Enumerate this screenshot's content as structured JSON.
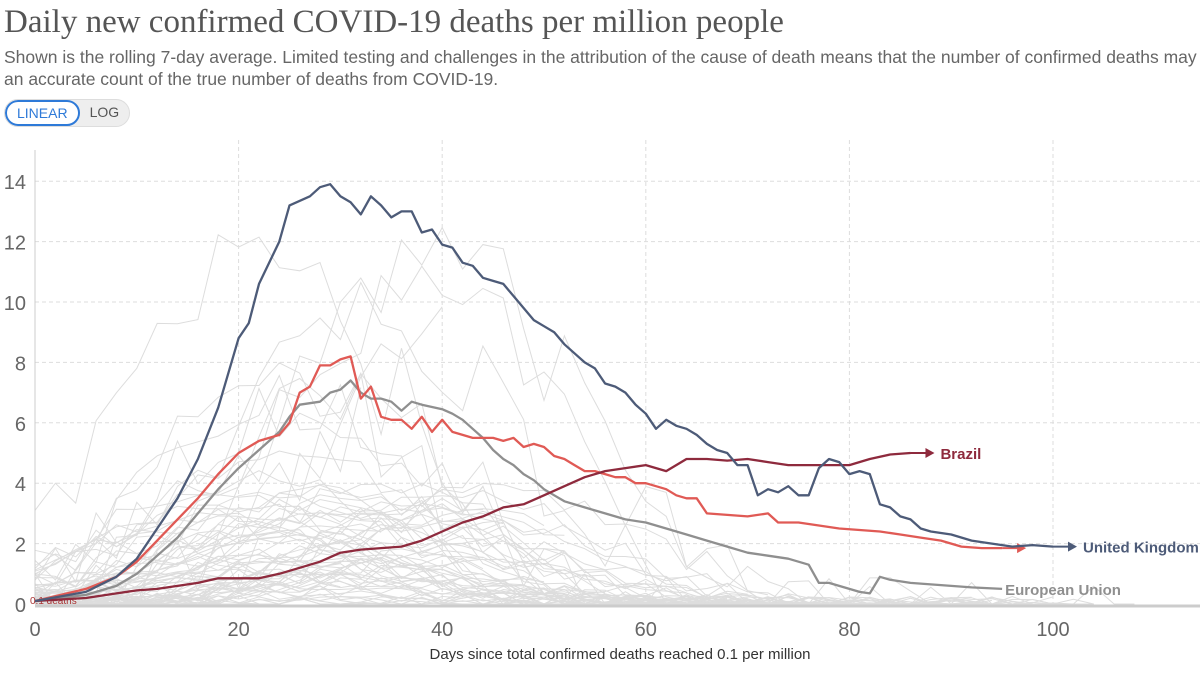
{
  "header": {
    "title": "Daily new confirmed COVID-19 deaths per million people",
    "subtitle": "Shown is the rolling 7-day average. Limited testing and challenges in the attribution of the cause of death means that the number of confirmed deaths may not be an accurate count of the true number of deaths from COVID-19."
  },
  "scale_toggle": {
    "linear": "LINEAR",
    "log": "LOG",
    "selected": "LINEAR"
  },
  "chart_data": {
    "type": "line",
    "title": "Daily new confirmed COVID-19 deaths per million people",
    "xlabel": "Days since total confirmed deaths reached 0.1 per million",
    "ylabel": "",
    "xlim": [
      0,
      115
    ],
    "ylim": [
      0,
      15.3
    ],
    "x_ticks": [
      "0",
      "20",
      "40",
      "60",
      "80",
      "100"
    ],
    "y_ticks": [
      "0",
      "2",
      "4",
      "6",
      "8",
      "10",
      "12",
      "14"
    ],
    "grid": true,
    "annotation": "0.1 deaths",
    "series": [
      {
        "name": "United Kingdom",
        "color": "#4d5b78",
        "points": [
          [
            0,
            0.1
          ],
          [
            5,
            0.4
          ],
          [
            8,
            0.9
          ],
          [
            10,
            1.5
          ],
          [
            12,
            2.5
          ],
          [
            14,
            3.5
          ],
          [
            16,
            4.8
          ],
          [
            18,
            6.5
          ],
          [
            20,
            8.8
          ],
          [
            21,
            9.3
          ],
          [
            22,
            10.6
          ],
          [
            24,
            12.0
          ],
          [
            25,
            13.2
          ],
          [
            27,
            13.5
          ],
          [
            28,
            13.8
          ],
          [
            29,
            13.9
          ],
          [
            30,
            13.5
          ],
          [
            31,
            13.3
          ],
          [
            32,
            12.9
          ],
          [
            33,
            13.5
          ],
          [
            34,
            13.2
          ],
          [
            35,
            12.8
          ],
          [
            36,
            13.0
          ],
          [
            37,
            13.0
          ],
          [
            38,
            12.3
          ],
          [
            39,
            12.4
          ],
          [
            40,
            11.9
          ],
          [
            41,
            11.8
          ],
          [
            42,
            11.3
          ],
          [
            43,
            11.2
          ],
          [
            44,
            10.8
          ],
          [
            45,
            10.7
          ],
          [
            46,
            10.6
          ],
          [
            47,
            10.2
          ],
          [
            48,
            9.8
          ],
          [
            49,
            9.4
          ],
          [
            50,
            9.2
          ],
          [
            51,
            9.0
          ],
          [
            52,
            8.6
          ],
          [
            53,
            8.3
          ],
          [
            54,
            8.0
          ],
          [
            55,
            7.8
          ],
          [
            56,
            7.3
          ],
          [
            57,
            7.2
          ],
          [
            58,
            7.0
          ],
          [
            59,
            6.6
          ],
          [
            60,
            6.3
          ],
          [
            61,
            5.8
          ],
          [
            62,
            6.1
          ],
          [
            63,
            5.9
          ],
          [
            64,
            5.8
          ],
          [
            65,
            5.6
          ],
          [
            66,
            5.3
          ],
          [
            67,
            5.1
          ],
          [
            68,
            5.0
          ],
          [
            69,
            4.6
          ],
          [
            70,
            4.6
          ],
          [
            71,
            3.6
          ],
          [
            72,
            3.8
          ],
          [
            73,
            3.7
          ],
          [
            74,
            3.9
          ],
          [
            75,
            3.6
          ],
          [
            76,
            3.6
          ],
          [
            77,
            4.5
          ],
          [
            78,
            4.8
          ],
          [
            79,
            4.7
          ],
          [
            80,
            4.3
          ],
          [
            81,
            4.4
          ],
          [
            82,
            4.3
          ],
          [
            83,
            3.3
          ],
          [
            84,
            3.2
          ],
          [
            85,
            2.9
          ],
          [
            86,
            2.8
          ],
          [
            87,
            2.5
          ],
          [
            88,
            2.4
          ],
          [
            90,
            2.3
          ],
          [
            92,
            2.1
          ],
          [
            94,
            2.0
          ],
          [
            96,
            1.9
          ],
          [
            98,
            1.95
          ],
          [
            100,
            1.9
          ]
        ]
      },
      {
        "name": "Brazil",
        "color": "#8e2a3d",
        "points": [
          [
            0,
            0.1
          ],
          [
            5,
            0.2
          ],
          [
            8,
            0.35
          ],
          [
            10,
            0.45
          ],
          [
            12,
            0.5
          ],
          [
            14,
            0.6
          ],
          [
            16,
            0.7
          ],
          [
            18,
            0.85
          ],
          [
            20,
            0.85
          ],
          [
            22,
            0.85
          ],
          [
            24,
            1.0
          ],
          [
            26,
            1.2
          ],
          [
            28,
            1.4
          ],
          [
            30,
            1.7
          ],
          [
            32,
            1.8
          ],
          [
            34,
            1.85
          ],
          [
            36,
            1.9
          ],
          [
            38,
            2.1
          ],
          [
            40,
            2.4
          ],
          [
            42,
            2.7
          ],
          [
            44,
            2.9
          ],
          [
            46,
            3.2
          ],
          [
            48,
            3.3
          ],
          [
            50,
            3.6
          ],
          [
            52,
            3.9
          ],
          [
            54,
            4.2
          ],
          [
            56,
            4.4
          ],
          [
            58,
            4.5
          ],
          [
            60,
            4.6
          ],
          [
            62,
            4.4
          ],
          [
            64,
            4.8
          ],
          [
            66,
            4.8
          ],
          [
            68,
            4.75
          ],
          [
            70,
            4.8
          ],
          [
            72,
            4.7
          ],
          [
            74,
            4.6
          ],
          [
            76,
            4.6
          ],
          [
            78,
            4.6
          ],
          [
            80,
            4.6
          ],
          [
            82,
            4.8
          ],
          [
            84,
            4.95
          ],
          [
            86,
            5.0
          ]
        ]
      },
      {
        "color": "#e05a55",
        "points": [
          [
            0,
            0.1
          ],
          [
            5,
            0.5
          ],
          [
            8,
            0.9
          ],
          [
            10,
            1.4
          ],
          [
            12,
            2.1
          ],
          [
            14,
            2.8
          ],
          [
            16,
            3.5
          ],
          [
            18,
            4.3
          ],
          [
            20,
            5.0
          ],
          [
            22,
            5.4
          ],
          [
            24,
            5.6
          ],
          [
            25,
            6.0
          ],
          [
            26,
            7.0
          ],
          [
            27,
            7.2
          ],
          [
            28,
            7.9
          ],
          [
            29,
            7.9
          ],
          [
            30,
            8.1
          ],
          [
            31,
            8.2
          ],
          [
            32,
            6.8
          ],
          [
            33,
            7.2
          ],
          [
            34,
            6.2
          ],
          [
            35,
            6.1
          ],
          [
            36,
            6.1
          ],
          [
            37,
            5.8
          ],
          [
            38,
            6.2
          ],
          [
            39,
            5.7
          ],
          [
            40,
            6.1
          ],
          [
            41,
            5.7
          ],
          [
            42,
            5.6
          ],
          [
            43,
            5.5
          ],
          [
            45,
            5.5
          ],
          [
            46,
            5.4
          ],
          [
            47,
            5.5
          ],
          [
            48,
            5.2
          ],
          [
            49,
            5.3
          ],
          [
            50,
            5.2
          ],
          [
            51,
            4.9
          ],
          [
            52,
            4.8
          ],
          [
            53,
            4.6
          ],
          [
            54,
            4.4
          ],
          [
            55,
            4.4
          ],
          [
            56,
            4.3
          ],
          [
            57,
            4.2
          ],
          [
            58,
            4.2
          ],
          [
            59,
            4.0
          ],
          [
            60,
            4.0
          ],
          [
            61,
            3.9
          ],
          [
            62,
            3.8
          ],
          [
            63,
            3.6
          ],
          [
            64,
            3.5
          ],
          [
            65,
            3.5
          ],
          [
            66,
            3.0
          ],
          [
            68,
            2.95
          ],
          [
            70,
            2.9
          ],
          [
            72,
            3.0
          ],
          [
            73,
            2.7
          ],
          [
            75,
            2.7
          ],
          [
            77,
            2.6
          ],
          [
            79,
            2.5
          ],
          [
            81,
            2.45
          ],
          [
            83,
            2.4
          ],
          [
            85,
            2.3
          ],
          [
            87,
            2.2
          ],
          [
            89,
            2.1
          ],
          [
            91,
            1.9
          ],
          [
            93,
            1.85
          ],
          [
            95,
            1.85
          ]
        ]
      },
      {
        "name": "European Union",
        "color": "#8f8f8f",
        "points": [
          [
            0,
            0.1
          ],
          [
            5,
            0.3
          ],
          [
            8,
            0.6
          ],
          [
            10,
            1.0
          ],
          [
            12,
            1.6
          ],
          [
            14,
            2.2
          ],
          [
            16,
            3.0
          ],
          [
            18,
            3.8
          ],
          [
            20,
            4.5
          ],
          [
            22,
            5.1
          ],
          [
            24,
            5.7
          ],
          [
            25,
            6.2
          ],
          [
            26,
            6.6
          ],
          [
            28,
            6.7
          ],
          [
            29,
            7.0
          ],
          [
            30,
            7.1
          ],
          [
            31,
            7.4
          ],
          [
            32,
            7.0
          ],
          [
            33,
            6.8
          ],
          [
            34,
            6.8
          ],
          [
            35,
            6.7
          ],
          [
            36,
            6.4
          ],
          [
            37,
            6.7
          ],
          [
            38,
            6.6
          ],
          [
            40,
            6.45
          ],
          [
            41,
            6.3
          ],
          [
            42,
            6.1
          ],
          [
            43,
            5.8
          ],
          [
            44,
            5.5
          ],
          [
            45,
            5.1
          ],
          [
            46,
            4.8
          ],
          [
            47,
            4.6
          ],
          [
            48,
            4.3
          ],
          [
            49,
            4.1
          ],
          [
            50,
            3.8
          ],
          [
            51,
            3.6
          ],
          [
            52,
            3.4
          ],
          [
            54,
            3.2
          ],
          [
            56,
            3.0
          ],
          [
            58,
            2.8
          ],
          [
            60,
            2.7
          ],
          [
            62,
            2.5
          ],
          [
            64,
            2.3
          ],
          [
            66,
            2.1
          ],
          [
            68,
            1.9
          ],
          [
            70,
            1.7
          ],
          [
            72,
            1.6
          ],
          [
            74,
            1.5
          ],
          [
            75,
            1.4
          ],
          [
            76,
            1.3
          ],
          [
            77,
            0.7
          ],
          [
            78,
            0.7
          ],
          [
            79,
            0.6
          ],
          [
            80,
            0.5
          ],
          [
            81,
            0.4
          ],
          [
            82,
            0.35
          ],
          [
            83,
            0.9
          ],
          [
            84,
            0.8
          ],
          [
            86,
            0.7
          ],
          [
            88,
            0.65
          ],
          [
            90,
            0.6
          ],
          [
            92,
            0.55
          ],
          [
            95,
            0.5
          ]
        ]
      }
    ]
  }
}
